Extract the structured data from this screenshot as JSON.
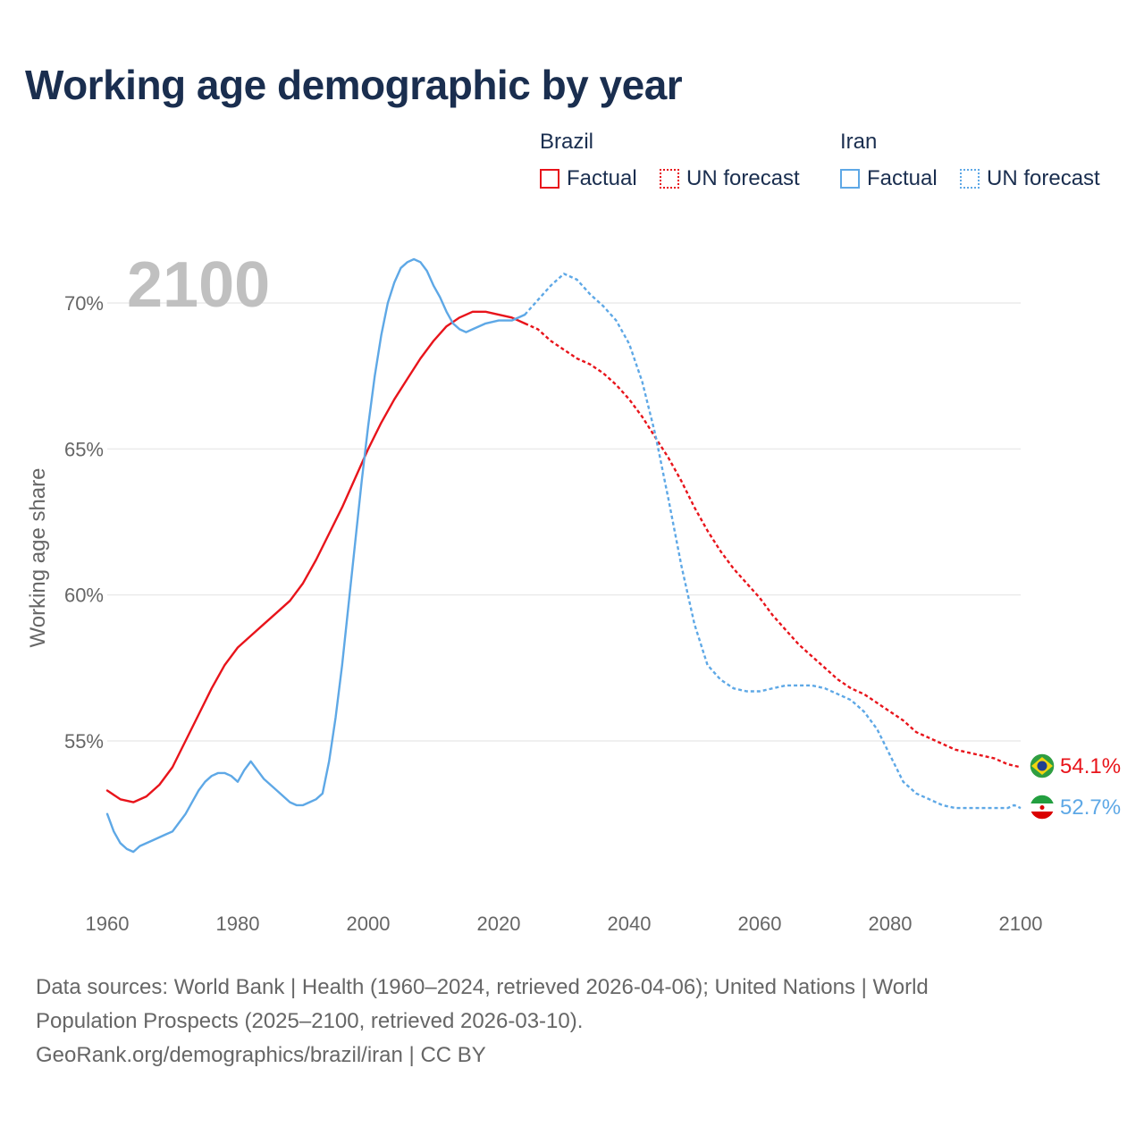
{
  "title": "Working age demographic by year",
  "year_label": "2100",
  "legend": {
    "groups": [
      {
        "name": "Brazil",
        "factual_label": "Factual",
        "forecast_label": "UN forecast",
        "color": "#e8141b"
      },
      {
        "name": "Iran",
        "factual_label": "Factual",
        "forecast_label": "UN forecast",
        "color": "#5ea8e6"
      }
    ]
  },
  "end_labels": [
    {
      "series": "Brazil",
      "text": "54.1%",
      "flag": "brazil-flag-icon"
    },
    {
      "series": "Iran",
      "text": "52.7%",
      "flag": "iran-flag-icon"
    }
  ],
  "sources": {
    "line1": "Data sources: World Bank | Health (1960–2024, retrieved 2026-04-06); United Nations | World",
    "line2": "Population Prospects (2025–2100, retrieved 2026-03-10).",
    "line3": "GeoRank.org/demographics/brazil/iran | CC BY"
  },
  "chart_data": {
    "type": "line",
    "title": "Working age demographic by year",
    "xlabel": "",
    "ylabel": "Working age share",
    "xlim": [
      1960,
      2100
    ],
    "ylim": [
      50.5,
      72
    ],
    "x_ticks": [
      1960,
      1980,
      2000,
      2020,
      2040,
      2060,
      2080,
      2100
    ],
    "x_tick_labels": [
      "1960",
      "1980",
      "2000",
      "2020",
      "2040",
      "2060",
      "2080",
      "2100"
    ],
    "y_ticks": [
      55,
      60,
      65,
      70
    ],
    "y_tick_labels": [
      "55%",
      "60%",
      "65%",
      "70%"
    ],
    "grid": true,
    "factual_end_year": 2024,
    "series": [
      {
        "name": "Brazil",
        "color": "#e8141b",
        "points": [
          [
            1960,
            53.3
          ],
          [
            1962,
            53.0
          ],
          [
            1964,
            52.9
          ],
          [
            1966,
            53.1
          ],
          [
            1968,
            53.5
          ],
          [
            1970,
            54.1
          ],
          [
            1972,
            55.0
          ],
          [
            1974,
            55.9
          ],
          [
            1976,
            56.8
          ],
          [
            1978,
            57.6
          ],
          [
            1980,
            58.2
          ],
          [
            1982,
            58.6
          ],
          [
            1984,
            59.0
          ],
          [
            1986,
            59.4
          ],
          [
            1988,
            59.8
          ],
          [
            1990,
            60.4
          ],
          [
            1992,
            61.2
          ],
          [
            1994,
            62.1
          ],
          [
            1996,
            63.0
          ],
          [
            1998,
            64.0
          ],
          [
            2000,
            65.0
          ],
          [
            2002,
            65.9
          ],
          [
            2004,
            66.7
          ],
          [
            2006,
            67.4
          ],
          [
            2008,
            68.1
          ],
          [
            2010,
            68.7
          ],
          [
            2012,
            69.2
          ],
          [
            2014,
            69.5
          ],
          [
            2016,
            69.7
          ],
          [
            2018,
            69.7
          ],
          [
            2020,
            69.6
          ],
          [
            2022,
            69.5
          ],
          [
            2024,
            69.3
          ],
          [
            2026,
            69.1
          ],
          [
            2028,
            68.7
          ],
          [
            2030,
            68.4
          ],
          [
            2032,
            68.1
          ],
          [
            2034,
            67.9
          ],
          [
            2036,
            67.6
          ],
          [
            2038,
            67.2
          ],
          [
            2040,
            66.7
          ],
          [
            2042,
            66.1
          ],
          [
            2044,
            65.4
          ],
          [
            2046,
            64.7
          ],
          [
            2048,
            63.9
          ],
          [
            2050,
            63.0
          ],
          [
            2052,
            62.2
          ],
          [
            2054,
            61.5
          ],
          [
            2056,
            60.9
          ],
          [
            2058,
            60.4
          ],
          [
            2060,
            59.9
          ],
          [
            2062,
            59.3
          ],
          [
            2064,
            58.8
          ],
          [
            2066,
            58.3
          ],
          [
            2068,
            57.9
          ],
          [
            2070,
            57.5
          ],
          [
            2072,
            57.1
          ],
          [
            2074,
            56.8
          ],
          [
            2076,
            56.6
          ],
          [
            2078,
            56.3
          ],
          [
            2080,
            56.0
          ],
          [
            2082,
            55.7
          ],
          [
            2084,
            55.3
          ],
          [
            2086,
            55.1
          ],
          [
            2088,
            54.9
          ],
          [
            2090,
            54.7
          ],
          [
            2092,
            54.6
          ],
          [
            2094,
            54.5
          ],
          [
            2096,
            54.4
          ],
          [
            2098,
            54.2
          ],
          [
            2100,
            54.1
          ]
        ]
      },
      {
        "name": "Iran",
        "color": "#5ea8e6",
        "points": [
          [
            1960,
            52.5
          ],
          [
            1961,
            51.9
          ],
          [
            1962,
            51.5
          ],
          [
            1963,
            51.3
          ],
          [
            1964,
            51.2
          ],
          [
            1965,
            51.4
          ],
          [
            1967,
            51.6
          ],
          [
            1969,
            51.8
          ],
          [
            1970,
            51.9
          ],
          [
            1971,
            52.2
          ],
          [
            1972,
            52.5
          ],
          [
            1973,
            52.9
          ],
          [
            1974,
            53.3
          ],
          [
            1975,
            53.6
          ],
          [
            1976,
            53.8
          ],
          [
            1977,
            53.9
          ],
          [
            1978,
            53.9
          ],
          [
            1979,
            53.8
          ],
          [
            1980,
            53.6
          ],
          [
            1981,
            54.0
          ],
          [
            1982,
            54.3
          ],
          [
            1983,
            54.0
          ],
          [
            1984,
            53.7
          ],
          [
            1986,
            53.3
          ],
          [
            1988,
            52.9
          ],
          [
            1989,
            52.8
          ],
          [
            1990,
            52.8
          ],
          [
            1991,
            52.9
          ],
          [
            1992,
            53.0
          ],
          [
            1993,
            53.2
          ],
          [
            1994,
            54.3
          ],
          [
            1995,
            55.8
          ],
          [
            1996,
            57.6
          ],
          [
            1997,
            59.7
          ],
          [
            1998,
            61.8
          ],
          [
            1999,
            63.9
          ],
          [
            2000,
            65.8
          ],
          [
            2001,
            67.5
          ],
          [
            2002,
            68.9
          ],
          [
            2003,
            70.0
          ],
          [
            2004,
            70.7
          ],
          [
            2005,
            71.2
          ],
          [
            2006,
            71.4
          ],
          [
            2007,
            71.5
          ],
          [
            2008,
            71.4
          ],
          [
            2009,
            71.1
          ],
          [
            2010,
            70.6
          ],
          [
            2011,
            70.2
          ],
          [
            2012,
            69.7
          ],
          [
            2013,
            69.3
          ],
          [
            2014,
            69.1
          ],
          [
            2015,
            69.0
          ],
          [
            2016,
            69.1
          ],
          [
            2018,
            69.3
          ],
          [
            2020,
            69.4
          ],
          [
            2022,
            69.4
          ],
          [
            2024,
            69.6
          ],
          [
            2026,
            70.1
          ],
          [
            2028,
            70.6
          ],
          [
            2030,
            71.0
          ],
          [
            2032,
            70.8
          ],
          [
            2034,
            70.3
          ],
          [
            2036,
            69.9
          ],
          [
            2038,
            69.4
          ],
          [
            2040,
            68.6
          ],
          [
            2042,
            67.3
          ],
          [
            2044,
            65.5
          ],
          [
            2046,
            63.3
          ],
          [
            2048,
            61.0
          ],
          [
            2050,
            59.0
          ],
          [
            2052,
            57.6
          ],
          [
            2054,
            57.1
          ],
          [
            2056,
            56.8
          ],
          [
            2058,
            56.7
          ],
          [
            2060,
            56.7
          ],
          [
            2062,
            56.8
          ],
          [
            2064,
            56.9
          ],
          [
            2066,
            56.9
          ],
          [
            2068,
            56.9
          ],
          [
            2070,
            56.8
          ],
          [
            2072,
            56.6
          ],
          [
            2074,
            56.4
          ],
          [
            2076,
            56.0
          ],
          [
            2078,
            55.4
          ],
          [
            2080,
            54.5
          ],
          [
            2082,
            53.6
          ],
          [
            2084,
            53.2
          ],
          [
            2086,
            53.0
          ],
          [
            2088,
            52.8
          ],
          [
            2090,
            52.7
          ],
          [
            2092,
            52.7
          ],
          [
            2094,
            52.7
          ],
          [
            2096,
            52.7
          ],
          [
            2098,
            52.7
          ],
          [
            2099,
            52.8
          ],
          [
            2100,
            52.7
          ]
        ]
      }
    ]
  }
}
